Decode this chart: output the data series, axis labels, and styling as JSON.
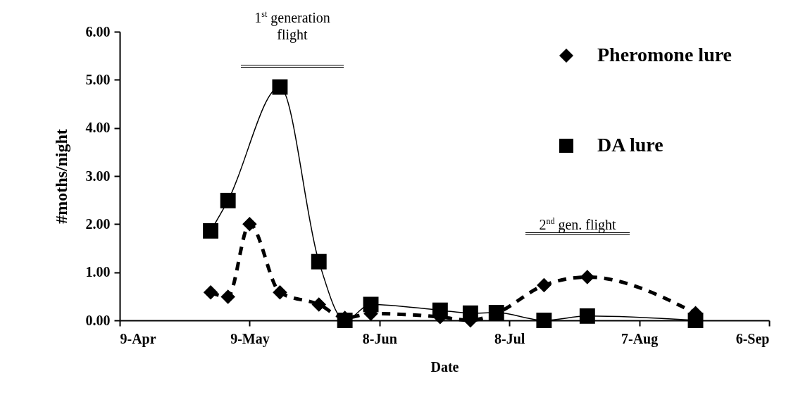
{
  "chart_data": {
    "type": "line",
    "xlabel": "Date",
    "ylabel": "#moths/night",
    "xlim": [
      "--04-09",
      "--09-06"
    ],
    "xticks": [
      {
        "value": "--04-09",
        "label": "9-Apr"
      },
      {
        "value": "--05-09",
        "label": "9-May"
      },
      {
        "value": "--06-08",
        "label": "8-Jun"
      },
      {
        "value": "--07-08",
        "label": "8-Jul"
      },
      {
        "value": "--08-07",
        "label": "7-Aug"
      },
      {
        "value": "--09-06",
        "label": "6-Sep"
      }
    ],
    "ylim": [
      0,
      6
    ],
    "yticks": [
      {
        "value": 0,
        "label": "0.00"
      },
      {
        "value": 1,
        "label": "1.00"
      },
      {
        "value": 2,
        "label": "2.00"
      },
      {
        "value": 3,
        "label": "3.00"
      },
      {
        "value": 4,
        "label": "4.00"
      },
      {
        "value": 5,
        "label": "5.00"
      },
      {
        "value": 6,
        "label": "6.00"
      }
    ],
    "x": [
      "--04-30",
      "--05-04",
      "--05-09",
      "--05-16",
      "--05-25",
      "--05-31",
      "--06-06",
      "--06-22",
      "--06-29",
      "--07-05",
      "--07-16",
      "--07-26",
      "--08-20"
    ],
    "series": [
      {
        "name": "Pheromone lure",
        "color": "#000000",
        "marker": "diamond",
        "line_style": "dashed",
        "values": [
          0.58,
          0.49,
          2.0,
          0.58,
          0.33,
          0.05,
          0.14,
          0.07,
          0.0,
          0.15,
          0.73,
          0.9,
          0.15
        ]
      },
      {
        "name": "DA lure",
        "color": "#000000",
        "marker": "square",
        "line_style": "solid",
        "x": [
          "--04-30",
          "--05-04",
          "--05-16",
          "--05-25",
          "--05-31",
          "--06-06",
          "--06-22",
          "--06-29",
          "--07-05",
          "--07-16",
          "--07-26",
          "--08-20"
        ],
        "values": [
          1.86,
          2.49,
          4.85,
          1.22,
          0.0,
          0.33,
          0.21,
          0.15,
          0.16,
          0.0,
          0.09,
          0.0
        ]
      }
    ],
    "annotations": [
      "1$^{st}$ generation flight",
      "2$^{nd}$ gen. flight"
    ],
    "legend": "right",
    "grid": false
  }
}
